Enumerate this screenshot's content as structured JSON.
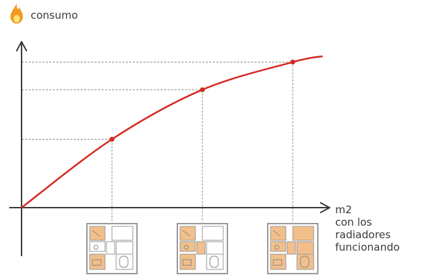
{
  "chart_data": {
    "type": "line",
    "ylabel": "consumo",
    "xlabel_lines": [
      "m2",
      "con los",
      "radiadores",
      "funcionando"
    ],
    "icon": "flame-icon",
    "curve": {
      "x": [
        0,
        1,
        2,
        3,
        3.33
      ],
      "y": [
        0,
        0.47,
        0.81,
        1.0,
        1.04
      ]
    },
    "points": [
      {
        "x": 1,
        "y": 0.47
      },
      {
        "x": 2,
        "y": 0.81
      },
      {
        "x": 3,
        "y": 1.0
      }
    ],
    "floorplans": [
      {
        "heated_rooms": 2
      },
      {
        "heated_rooms": 4
      },
      {
        "heated_rooms": 7
      }
    ],
    "xlim": [
      0,
      3.9
    ],
    "ylim": [
      0,
      1.35
    ],
    "colors": {
      "curve": "#d42a22",
      "axis": "#3a3a3a",
      "guide": "#8a8a8a",
      "heated": "#f2bf8b"
    }
  }
}
